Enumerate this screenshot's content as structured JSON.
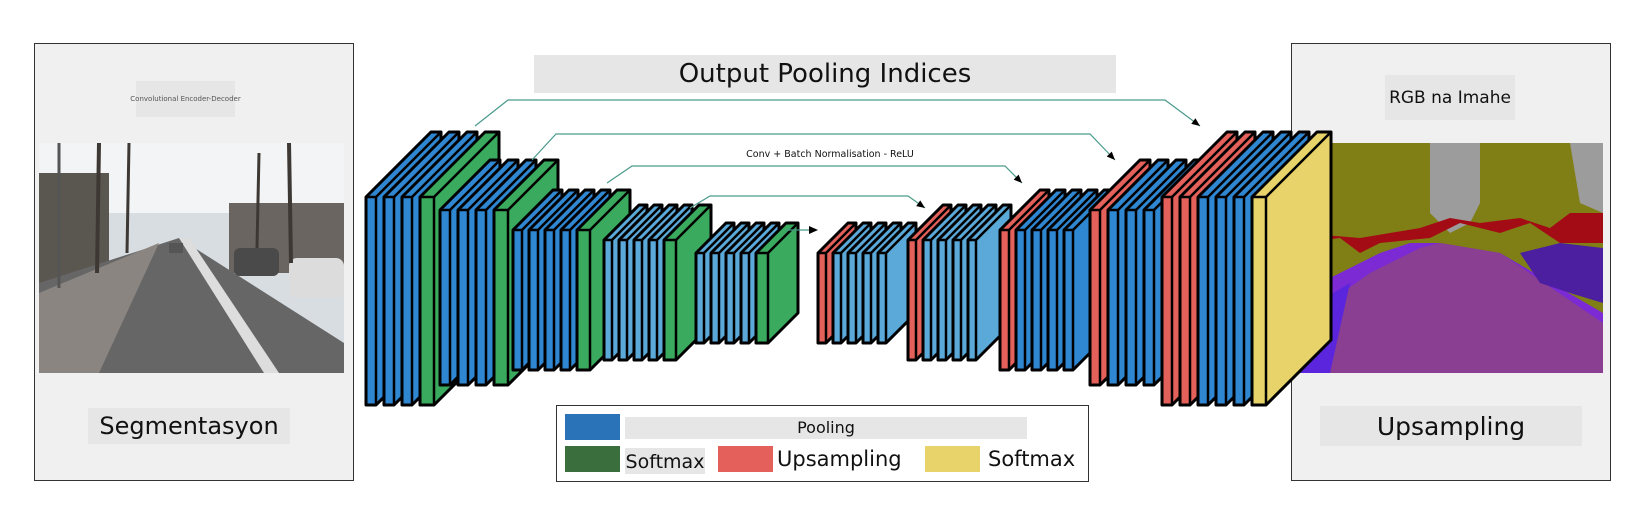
{
  "title": "Output Pooling Indices",
  "left_panel": {
    "tiny_caption": "Convolutional Encoder-Decoder",
    "label": "Segmentasyon",
    "photo_desc_icon": "street-photo"
  },
  "right_panel": {
    "header": "RGB na Imahe",
    "label": "Upsampling",
    "image_icon": "segmentation-map"
  },
  "layer_label": "Conv + Batch Normalisation - ReLU",
  "legend": {
    "items": [
      {
        "label": "Pooling",
        "color": "#2a73b8"
      },
      {
        "label": "Softmax",
        "color": "#3a6e3c"
      },
      {
        "label": "Upsampling",
        "color": "#e4605a"
      },
      {
        "label": "Softmax",
        "color": "#e8d36a"
      }
    ]
  },
  "colors": {
    "conv": "#2f86d1",
    "conv_light": "#5aa9d9",
    "pool": "#3aaa5e",
    "upsample": "#e4605a",
    "softmax": "#e8d36a",
    "connector": "#4a9a8a"
  }
}
